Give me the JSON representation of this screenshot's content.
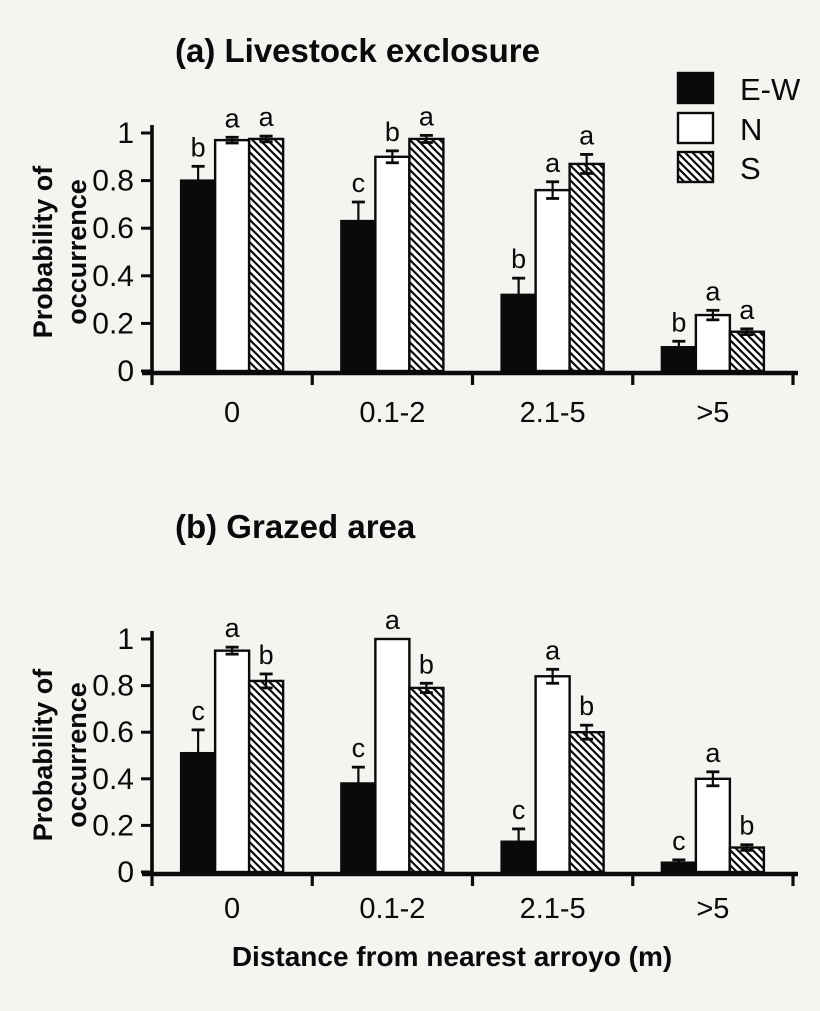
{
  "figure": {
    "background": "#f5f4f1",
    "ink_color": "#0a0a0a",
    "bar_black": "#0a0a0a",
    "bar_white": "#ffffff"
  },
  "legend": {
    "items": [
      {
        "label": "E-W",
        "fill": "black"
      },
      {
        "label": "N",
        "fill": "white"
      },
      {
        "label": "S",
        "fill": "hatch"
      }
    ]
  },
  "chart_data": [
    {
      "type": "bar",
      "title": "(a) Livestock exclosure",
      "ylabel": "Probability of occurrence",
      "ylabel_lines": [
        "Probability of",
        "occurrence"
      ],
      "xlabel": "",
      "ylim": [
        0,
        1
      ],
      "yticks": [
        {
          "label": "0",
          "value": 0
        },
        {
          "label": "0.2",
          "value": 0.2
        },
        {
          "label": "0.4",
          "value": 0.4
        },
        {
          "label": "0.6",
          "value": 0.6
        },
        {
          "label": "0.8",
          "value": 0.8
        },
        {
          "label": "1",
          "value": 1
        }
      ],
      "categories": [
        "0",
        "0.1-2",
        "2.1-5",
        ">5"
      ],
      "grid": false,
      "legend_position": "top-right",
      "series": [
        {
          "name": "E-W",
          "fill": "black",
          "values": [
            0.8,
            0.63,
            0.32,
            0.1
          ],
          "errors": [
            0.06,
            0.08,
            0.07,
            0.025
          ],
          "sig_letters": [
            "b",
            "c",
            "b",
            "b"
          ]
        },
        {
          "name": "N",
          "fill": "white",
          "values": [
            0.97,
            0.9,
            0.76,
            0.235
          ],
          "errors": [
            0.012,
            0.025,
            0.035,
            0.02
          ],
          "sig_letters": [
            "a",
            "b",
            "a",
            "a"
          ]
        },
        {
          "name": "S",
          "fill": "hatch",
          "values": [
            0.975,
            0.975,
            0.87,
            0.165
          ],
          "errors": [
            0.012,
            0.015,
            0.04,
            0.012
          ],
          "sig_letters": [
            "a",
            "a",
            "a",
            "a"
          ]
        }
      ]
    },
    {
      "type": "bar",
      "title": "(b) Grazed area",
      "ylabel": "Probability of occurrence",
      "ylabel_lines": [
        "Probability of",
        "occurrence"
      ],
      "xlabel": "Distance from nearest arroyo (m)",
      "ylim": [
        0,
        1
      ],
      "yticks": [
        {
          "label": "0",
          "value": 0
        },
        {
          "label": "0.2",
          "value": 0.2
        },
        {
          "label": "0.4",
          "value": 0.4
        },
        {
          "label": "0.6",
          "value": 0.6
        },
        {
          "label": "0.8",
          "value": 0.8
        },
        {
          "label": "1",
          "value": 1
        }
      ],
      "categories": [
        "0",
        "0.1-2",
        "2.1-5",
        ">5"
      ],
      "grid": false,
      "legend_position": "none",
      "series": [
        {
          "name": "E-W",
          "fill": "black",
          "values": [
            0.51,
            0.38,
            0.13,
            0.04
          ],
          "errors": [
            0.1,
            0.07,
            0.055,
            0.012
          ],
          "sig_letters": [
            "c",
            "c",
            "c",
            "c"
          ]
        },
        {
          "name": "N",
          "fill": "white",
          "values": [
            0.95,
            1.0,
            0.84,
            0.4
          ],
          "errors": [
            0.015,
            0,
            0.03,
            0.03
          ],
          "sig_letters": [
            "a",
            "a",
            "a",
            "a"
          ]
        },
        {
          "name": "S",
          "fill": "hatch",
          "values": [
            0.82,
            0.79,
            0.6,
            0.105
          ],
          "errors": [
            0.03,
            0.02,
            0.03,
            0.012
          ],
          "sig_letters": [
            "b",
            "b",
            "b",
            "b"
          ]
        }
      ]
    }
  ]
}
